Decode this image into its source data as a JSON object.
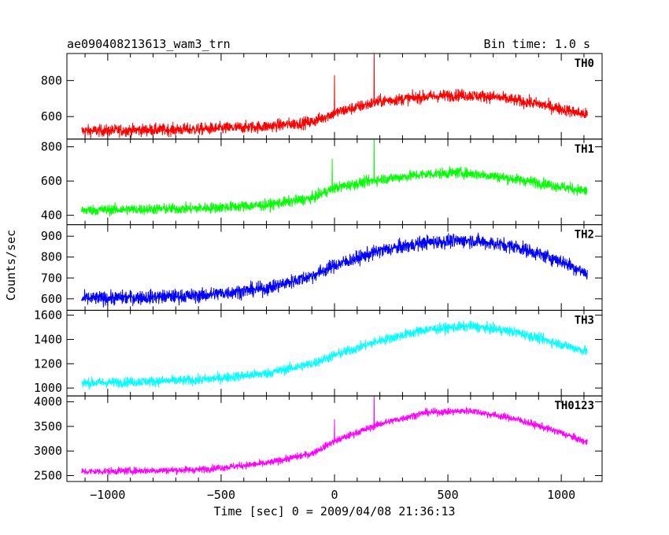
{
  "chart_data": {
    "type": "line",
    "title": "ae090408213613_wam3_trn",
    "bin_time_label": "Bin time: 1.0 s",
    "xlabel": "Time [sec] 0 = 2009/04/08 21:36:13",
    "ylabel": "Counts/sec",
    "xlim": [
      -1180,
      1180
    ],
    "x_ticks": [
      -1000,
      -500,
      0,
      500,
      1000
    ],
    "x_tick_labels": [
      "−1000",
      "−500",
      "0",
      "500",
      "1000"
    ],
    "x_range": [
      -1115,
      1115
    ],
    "grid": false,
    "panels": [
      {
        "name": "TH0",
        "color": "#ff0000",
        "ylim": [
          475,
          950
        ],
        "y_ticks": [
          600,
          800
        ],
        "y_tick_labels": [
          "600",
          "800"
        ],
        "trend_x": [
          -1115,
          -600,
          -300,
          -100,
          0,
          200,
          400,
          550,
          700,
          900,
          1115
        ],
        "trend_y": [
          520,
          530,
          545,
          570,
          620,
          685,
          710,
          720,
          710,
          670,
          610
        ],
        "noise": 32,
        "spikes": [
          {
            "x": 0,
            "y": 830
          },
          {
            "x": 175,
            "y": 960
          }
        ]
      },
      {
        "name": "TH1",
        "color": "#00ff00",
        "ylim": [
          345,
          845
        ],
        "y_ticks": [
          400,
          600,
          800
        ],
        "y_tick_labels": [
          "400",
          "600",
          "800"
        ],
        "trend_x": [
          -1115,
          -600,
          -300,
          -100,
          0,
          200,
          400,
          550,
          700,
          900,
          1115
        ],
        "trend_y": [
          430,
          440,
          460,
          500,
          560,
          610,
          640,
          650,
          630,
          590,
          540
        ],
        "noise": 30,
        "spikes": [
          {
            "x": -10,
            "y": 730
          },
          {
            "x": 175,
            "y": 845
          }
        ]
      },
      {
        "name": "TH2",
        "color": "#0000ff",
        "ylim": [
          545,
          955
        ],
        "y_ticks": [
          600,
          700,
          800,
          900
        ],
        "y_tick_labels": [
          "600",
          "700",
          "800",
          "900"
        ],
        "trend_x": [
          -1115,
          -600,
          -300,
          -100,
          0,
          200,
          400,
          600,
          800,
          1000,
          1115
        ],
        "trend_y": [
          600,
          615,
          650,
          710,
          760,
          830,
          870,
          880,
          850,
          780,
          720
        ],
        "noise": 32,
        "spikes": []
      },
      {
        "name": "TH3",
        "color": "#00ffff",
        "ylim": [
          935,
          1640
        ],
        "y_ticks": [
          1000,
          1200,
          1400,
          1600
        ],
        "y_tick_labels": [
          "1000",
          "1200",
          "1400",
          "1600"
        ],
        "trend_x": [
          -1115,
          -600,
          -300,
          -100,
          0,
          200,
          400,
          600,
          800,
          1000,
          1115
        ],
        "trend_y": [
          1040,
          1065,
          1120,
          1200,
          1270,
          1390,
          1480,
          1510,
          1460,
          1360,
          1300
        ],
        "noise": 40,
        "spikes": []
      },
      {
        "name": "TH0123",
        "color": "#ff00ff",
        "ylim": [
          2380,
          4120
        ],
        "y_ticks": [
          2500,
          3000,
          3500,
          4000
        ],
        "y_tick_labels": [
          "2500",
          "3000",
          "3500",
          "4000"
        ],
        "trend_x": [
          -1115,
          -600,
          -300,
          -100,
          0,
          200,
          400,
          600,
          800,
          1000,
          1115
        ],
        "trend_y": [
          2580,
          2620,
          2750,
          2950,
          3200,
          3550,
          3780,
          3820,
          3650,
          3370,
          3170
        ],
        "noise": 70,
        "spikes": [
          {
            "x": 0,
            "y": 3650
          },
          {
            "x": 175,
            "y": 4120
          }
        ]
      }
    ]
  }
}
